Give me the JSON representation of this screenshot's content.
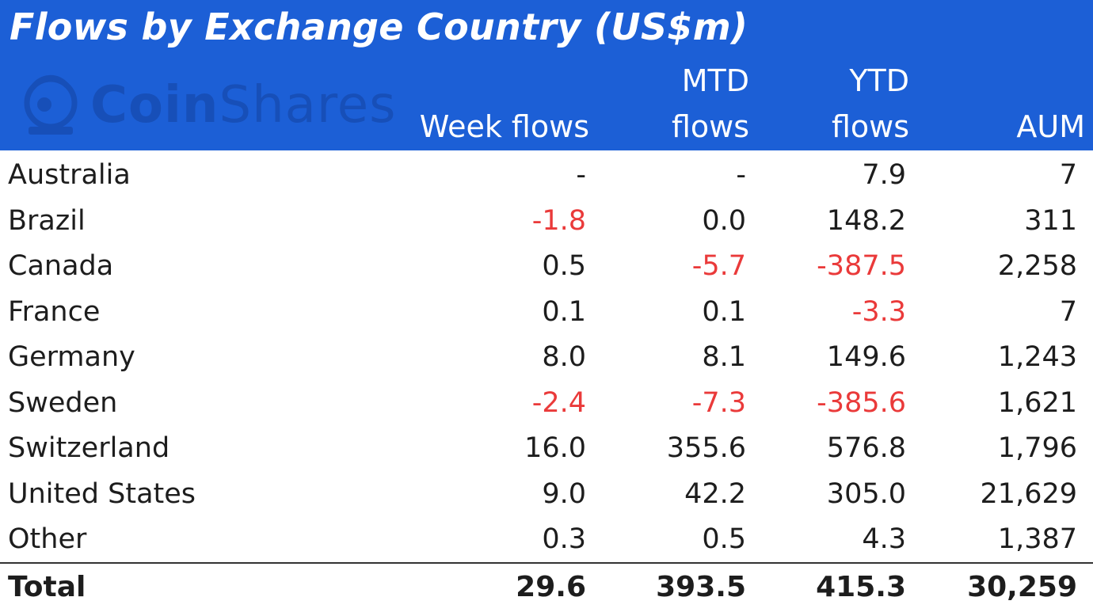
{
  "header": {
    "title": "Flows by Exchange Country (US$m)",
    "logo_text": "CoinShares",
    "logo_bold": "Coin",
    "logo_light": "Shares",
    "logo_icon": "astronaut-helmet-icon"
  },
  "columns": {
    "week": [
      "",
      "Week flows"
    ],
    "mtd": [
      "MTD",
      "flows"
    ],
    "ytd": [
      "YTD",
      "flows"
    ],
    "aum": [
      "",
      "AUM"
    ]
  },
  "colors": {
    "header_bg": "#1c5fd6",
    "negative": "#ea3a3a",
    "text": "#1d1d1d"
  },
  "chart_data": {
    "type": "table",
    "title": "Flows by Exchange Country (US$m)",
    "columns": [
      "Week flows",
      "MTD flows",
      "YTD flows",
      "AUM"
    ],
    "rows": [
      {
        "country": "Australia",
        "week": "-",
        "mtd": "-",
        "ytd": "7.9",
        "aum": "7"
      },
      {
        "country": "Brazil",
        "week": "-1.8",
        "mtd": "0.0",
        "ytd": "148.2",
        "aum": "311"
      },
      {
        "country": "Canada",
        "week": "0.5",
        "mtd": "-5.7",
        "ytd": "-387.5",
        "aum": "2,258"
      },
      {
        "country": "France",
        "week": "0.1",
        "mtd": "0.1",
        "ytd": "-3.3",
        "aum": "7"
      },
      {
        "country": "Germany",
        "week": "8.0",
        "mtd": "8.1",
        "ytd": "149.6",
        "aum": "1,243"
      },
      {
        "country": "Sweden",
        "week": "-2.4",
        "mtd": "-7.3",
        "ytd": "-385.6",
        "aum": "1,621"
      },
      {
        "country": "Switzerland",
        "week": "16.0",
        "mtd": "355.6",
        "ytd": "576.8",
        "aum": "1,796"
      },
      {
        "country": "United States",
        "week": "9.0",
        "mtd": "42.2",
        "ytd": "305.0",
        "aum": "21,629"
      },
      {
        "country": "Other",
        "week": "0.3",
        "mtd": "0.5",
        "ytd": "4.3",
        "aum": "1,387"
      }
    ],
    "total": {
      "country": "Total",
      "week": "29.6",
      "mtd": "393.5",
      "ytd": "415.3",
      "aum": "30,259"
    }
  }
}
